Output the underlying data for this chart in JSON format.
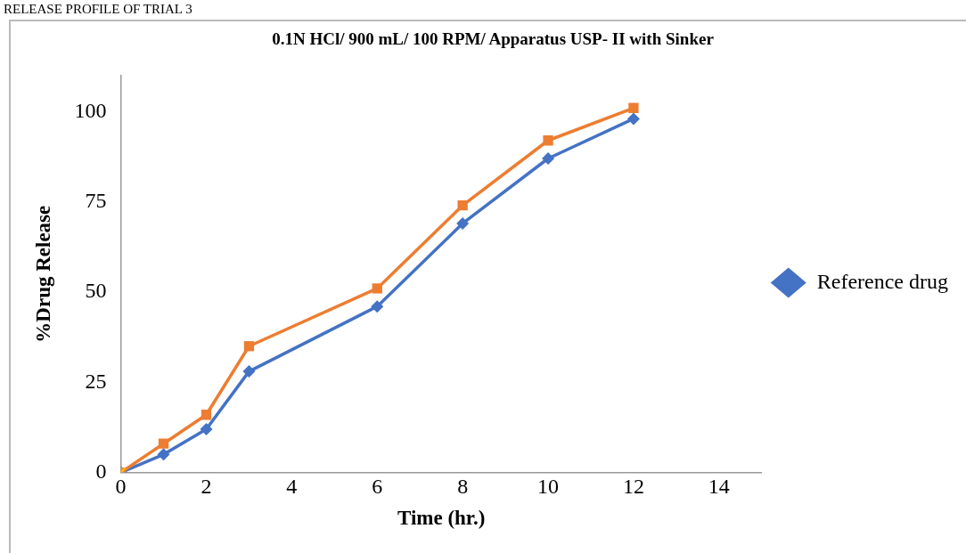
{
  "chart_data": {
    "type": "line",
    "title": "0.1N HCl/ 900 mL/ 100 RPM/ Apparatus USP- II with Sinker",
    "xlabel": "Time (hr.)",
    "ylabel": "%Drug Release",
    "annotations": [
      "RELEASE PROFILE OF TRIAL 3"
    ],
    "x": [
      0,
      1,
      2,
      3,
      6,
      8,
      10,
      12
    ],
    "series": [
      {
        "name": "Reference drug",
        "color": "#4472c4",
        "marker": "diamond",
        "values": [
          0,
          5,
          12,
          28,
          46,
          69,
          87,
          98
        ]
      },
      {
        "color": "#ed7d31",
        "marker": "square",
        "values": [
          0,
          8,
          16,
          35,
          51,
          74,
          92,
          101
        ]
      },
      {
        "color": "#a5a5a5",
        "marker": "triangle",
        "values": [
          0,
          null,
          null,
          null,
          null,
          null,
          null,
          null
        ]
      },
      {
        "color": "#ffc000",
        "marker": "cross",
        "values": [
          0,
          null,
          null,
          null,
          null,
          null,
          null,
          null
        ]
      }
    ],
    "xlim": [
      0,
      15
    ],
    "xticks": [
      0,
      2,
      4,
      6,
      8,
      10,
      12,
      14
    ],
    "ylim": [
      0,
      110
    ],
    "yticks": [
      0,
      25,
      50,
      75,
      100
    ],
    "legend": "right"
  }
}
